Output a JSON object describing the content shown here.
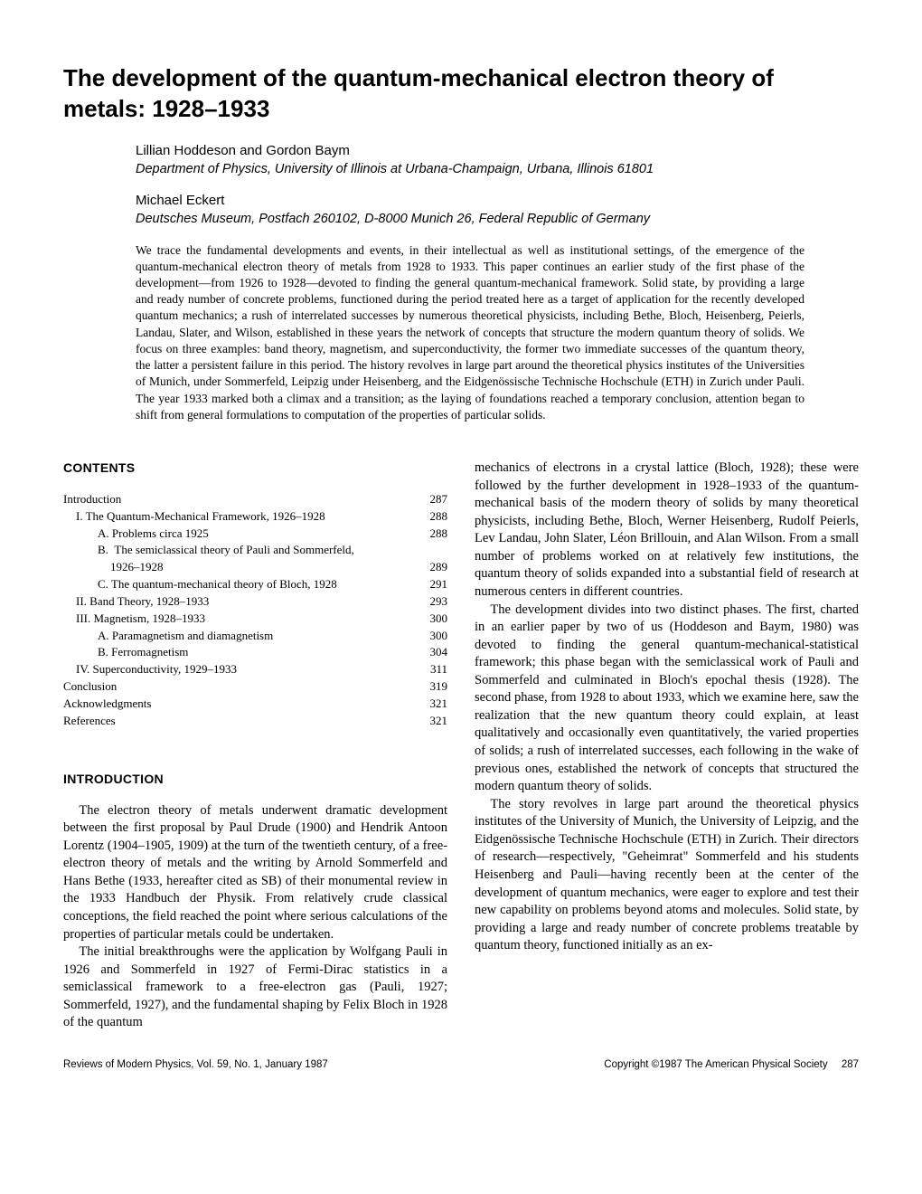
{
  "title": "The development of the quantum-mechanical electron theory of metals: 1928–1933",
  "author_block_1": {
    "authors": "Lillian Hoddeson and Gordon Baym",
    "affiliation": "Department of Physics, University of Illinois at Urbana-Champaign, Urbana, Illinois 61801"
  },
  "author_block_2": {
    "authors": "Michael Eckert",
    "affiliation": "Deutsches Museum, Postfach 260102, D-8000 Munich 26, Federal Republic of Germany"
  },
  "abstract": "We trace the fundamental developments and events, in their intellectual as well as institutional settings, of the emergence of the quantum-mechanical electron theory of metals from 1928 to 1933. This paper continues an earlier study of the first phase of the development—from 1926 to 1928—devoted to finding the general quantum-mechanical framework. Solid state, by providing a large and ready number of concrete problems, functioned during the period treated here as a target of application for the recently developed quantum mechanics; a rush of interrelated successes by numerous theoretical physicists, including Bethe, Bloch, Heisenberg, Peierls, Landau, Slater, and Wilson, established in these years the network of concepts that structure the modern quantum theory of solids. We focus on three examples: band theory, magnetism, and superconductivity, the former two immediate successes of the quantum theory, the latter a persistent failure in this period. The history revolves in large part around the theoretical physics institutes of the Universities of Munich, under Sommerfeld, Leipzig under Heisenberg, and the Eidgenössische Technische Hochschule (ETH) in Zurich under Pauli. The year 1933 marked both a climax and a transition; as the laying of foundations reached a temporary conclusion, attention began to shift from general formulations to computation of the properties of particular solids.",
  "contents_heading": "CONTENTS",
  "contents": [
    {
      "label": "Introduction",
      "page": "287",
      "indent": 0
    },
    {
      "label": "I. The Quantum-Mechanical Framework, 1926–1928",
      "page": "288",
      "indent": 1
    },
    {
      "label": "A. Problems circa 1925",
      "page": "288",
      "indent": 2
    },
    {
      "label": "B. The semiclassical theory of Pauli and Sommerfeld, 1926–1928",
      "page": "289",
      "indent": 2,
      "wrap": true
    },
    {
      "label": "C. The quantum-mechanical theory of Bloch, 1928",
      "page": "291",
      "indent": 2
    },
    {
      "label": "II. Band Theory, 1928–1933",
      "page": "293",
      "indent": 1
    },
    {
      "label": "III. Magnetism, 1928–1933",
      "page": "300",
      "indent": 1
    },
    {
      "label": "A. Paramagnetism and diamagnetism",
      "page": "300",
      "indent": 2
    },
    {
      "label": "B. Ferromagnetism",
      "page": "304",
      "indent": 2
    },
    {
      "label": "IV. Superconductivity, 1929–1933",
      "page": "311",
      "indent": 1
    },
    {
      "label": "Conclusion",
      "page": "319",
      "indent": 0
    },
    {
      "label": "Acknowledgments",
      "page": "321",
      "indent": 0
    },
    {
      "label": "References",
      "page": "321",
      "indent": 0
    }
  ],
  "intro_heading": "INTRODUCTION",
  "intro_p1": "The electron theory of metals underwent dramatic development between the first proposal by Paul Drude (1900) and Hendrik Antoon Lorentz (1904–1905, 1909) at the turn of the twentieth century, of a free-electron theory of metals and the writing by Arnold Sommerfeld and Hans Bethe (1933, hereafter cited as SB) of their monumental review in the 1933 Handbuch der Physik. From relatively crude classical conceptions, the field reached the point where serious calculations of the properties of particular metals could be undertaken.",
  "intro_p2": "The initial breakthroughs were the application by Wolfgang Pauli in 1926 and Sommerfeld in 1927 of Fermi-Dirac statistics in a semiclassical framework to a free-electron gas (Pauli, 1927; Sommerfeld, 1927), and the fundamental shaping by Felix Bloch in 1928 of the quantum",
  "rightcol_p1": "mechanics of electrons in a crystal lattice (Bloch, 1928); these were followed by the further development in 1928–1933 of the quantum-mechanical basis of the modern theory of solids by many theoretical physicists, including Bethe, Bloch, Werner Heisenberg, Rudolf Peierls, Lev Landau, John Slater, Léon Brillouin, and Alan Wilson. From a small number of problems worked on at relatively few institutions, the quantum theory of solids expanded into a substantial field of research at numerous centers in different countries.",
  "rightcol_p2": "The development divides into two distinct phases. The first, charted in an earlier paper by two of us (Hoddeson and Baym, 1980) was devoted to finding the general quantum-mechanical-statistical framework; this phase began with the semiclassical work of Pauli and Sommerfeld and culminated in Bloch's epochal thesis (1928). The second phase, from 1928 to about 1933, which we examine here, saw the realization that the new quantum theory could explain, at least qualitatively and occasionally even quantitatively, the varied properties of solids; a rush of interrelated successes, each following in the wake of previous ones, established the network of concepts that structured the modern quantum theory of solids.",
  "rightcol_p3": "The story revolves in large part around the theoretical physics institutes of the University of Munich, the University of Leipzig, and the Eidgenössische Technische Hochschule (ETH) in Zurich. Their directors of research—respectively, \"Geheimrat\" Sommerfeld and his students Heisenberg and Pauli—having recently been at the center of the development of quantum mechanics, were eager to explore and test their new capability on problems beyond atoms and molecules. Solid state, by providing a large and ready number of concrete problems treatable by quantum theory, functioned initially as an ex-",
  "footer": {
    "left": "Reviews of Modern Physics, Vol. 59, No. 1, January 1987",
    "right": "Copyright ©1987 The American Physical Society",
    "pagenum": "287"
  }
}
